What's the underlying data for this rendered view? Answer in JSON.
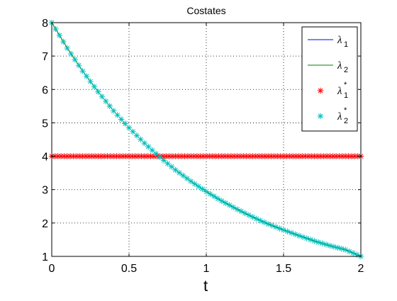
{
  "chart_data": {
    "type": "line",
    "title": "Costates",
    "xlabel": "t",
    "ylabel": "",
    "xlim": [
      0,
      2
    ],
    "ylim": [
      1,
      8
    ],
    "xticks": [
      0,
      0.5,
      1,
      1.5,
      2
    ],
    "xtick_labels": [
      "0",
      "0.5",
      "1",
      "1.5",
      "2"
    ],
    "yticks": [
      1,
      2,
      3,
      4,
      5,
      6,
      7,
      8
    ],
    "ytick_labels": [
      "1",
      "2",
      "3",
      "4",
      "5",
      "6",
      "7",
      "8"
    ],
    "grid": true,
    "legend_position": "top-right",
    "series": [
      {
        "name": "λ1",
        "legend_main": "λ",
        "legend_sub": "1",
        "legend_sup": "",
        "style": "line",
        "color": "#0000ff",
        "x": [
          0,
          2
        ],
        "y": [
          4,
          4
        ]
      },
      {
        "name": "λ2",
        "legend_main": "λ",
        "legend_sub": "2",
        "legend_sup": "",
        "style": "line",
        "color": "#008000",
        "x": [
          0,
          0.1,
          0.2,
          0.3,
          0.4,
          0.5,
          0.6,
          0.7,
          0.8,
          0.9,
          1.0,
          1.1,
          1.2,
          1.3,
          1.4,
          1.5,
          1.6,
          1.7,
          1.8,
          1.9,
          2.0
        ],
        "y": [
          8.0,
          7.24,
          6.55,
          5.93,
          5.36,
          4.85,
          4.39,
          3.97,
          3.59,
          3.25,
          2.94,
          2.66,
          2.41,
          2.18,
          1.97,
          1.79,
          1.62,
          1.46,
          1.32,
          1.2,
          1.0
        ]
      },
      {
        "name": "λ1*",
        "legend_main": "λ",
        "legend_sub": "1",
        "legend_sup": "*",
        "style": "star",
        "color": "#ff0000",
        "x_start": 0,
        "x_end": 2,
        "n_points": 101,
        "y_const": 4
      },
      {
        "name": "λ2*",
        "legend_main": "λ",
        "legend_sub": "2",
        "legend_sup": "*",
        "style": "star",
        "color": "#00bfbf",
        "x_start": 0,
        "x_end": 2,
        "n_points": 81,
        "sample_of": "λ2"
      }
    ]
  }
}
